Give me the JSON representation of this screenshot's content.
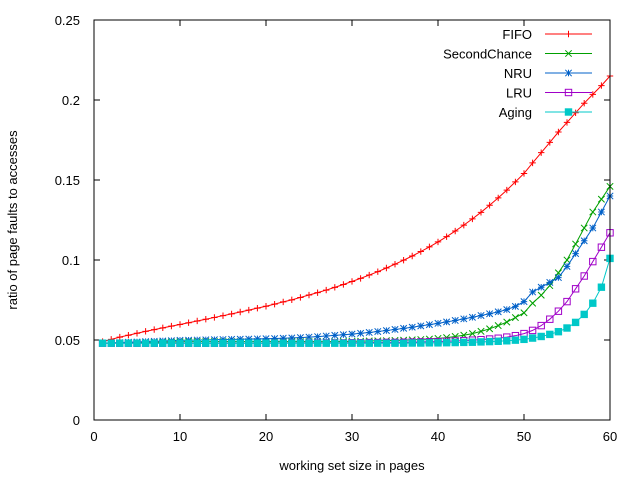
{
  "chart_data": {
    "type": "line",
    "title": "",
    "xlabel": "working set size in pages",
    "ylabel": "ratio of page faults to accesses",
    "xlim": [
      0,
      60
    ],
    "ylim": [
      0,
      0.25
    ],
    "x_ticks": [
      0,
      10,
      20,
      30,
      40,
      50,
      60
    ],
    "x_tick_labels": [
      "0",
      "10",
      "20",
      "30",
      "40",
      "50",
      "60"
    ],
    "y_ticks": [
      0,
      0.05,
      0.1,
      0.15,
      0.2,
      0.25
    ],
    "y_tick_labels": [
      "0",
      "0.05",
      "0.1",
      "0.15",
      "0.2",
      "0.25"
    ],
    "grid": false,
    "legend_position": "top-right",
    "x": [
      1,
      2,
      3,
      4,
      5,
      6,
      7,
      8,
      9,
      10,
      11,
      12,
      13,
      14,
      15,
      16,
      17,
      18,
      19,
      20,
      21,
      22,
      23,
      24,
      25,
      26,
      27,
      28,
      29,
      30,
      31,
      32,
      33,
      34,
      35,
      36,
      37,
      38,
      39,
      40,
      41,
      42,
      43,
      44,
      45,
      46,
      47,
      48,
      49,
      50,
      51,
      52,
      53,
      54,
      55,
      56,
      57,
      58,
      59,
      60
    ],
    "series": [
      {
        "name": "FIFO",
        "color": "#ff0000",
        "marker": "plus",
        "values": [
          0.049,
          0.0504,
          0.0518,
          0.053,
          0.0542,
          0.0554,
          0.0565,
          0.0576,
          0.0587,
          0.0597,
          0.0608,
          0.0619,
          0.063,
          0.0641,
          0.0652,
          0.0663,
          0.0675,
          0.0687,
          0.0699,
          0.0711,
          0.0724,
          0.0738,
          0.0751,
          0.0766,
          0.0781,
          0.0796,
          0.0812,
          0.0829,
          0.0847,
          0.0866,
          0.0885,
          0.0906,
          0.0927,
          0.095,
          0.0974,
          0.0999,
          0.1025,
          0.1053,
          0.1082,
          0.1113,
          0.1146,
          0.1181,
          0.1218,
          0.1257,
          0.1298,
          0.1342,
          0.1388,
          0.1437,
          0.1488,
          0.1541,
          0.1607,
          0.1671,
          0.1735,
          0.18,
          0.186,
          0.192,
          0.198,
          0.2035,
          0.209,
          0.215
        ]
      },
      {
        "name": "SecondChance",
        "color": "#00a000",
        "marker": "x",
        "values": [
          0.048,
          0.0481,
          0.0482,
          0.0483,
          0.0484,
          0.0485,
          0.0486,
          0.0487,
          0.0488,
          0.0489,
          0.049,
          0.049,
          0.049,
          0.049,
          0.049,
          0.049,
          0.049,
          0.049,
          0.049,
          0.049,
          0.049,
          0.049,
          0.049,
          0.049,
          0.049,
          0.049,
          0.049,
          0.049,
          0.0491,
          0.0492,
          0.0493,
          0.0494,
          0.0495,
          0.0496,
          0.0497,
          0.0499,
          0.0501,
          0.0503,
          0.0506,
          0.051,
          0.0515,
          0.0522,
          0.053,
          0.054,
          0.0554,
          0.057,
          0.059,
          0.0612,
          0.064,
          0.067,
          0.073,
          0.078,
          0.084,
          0.092,
          0.1,
          0.11,
          0.12,
          0.13,
          0.138,
          0.146
        ]
      },
      {
        "name": "NRU",
        "color": "#0060c8",
        "marker": "star",
        "values": [
          0.048,
          0.0482,
          0.0484,
          0.0486,
          0.0488,
          0.049,
          0.0492,
          0.0494,
          0.0496,
          0.0498,
          0.0499,
          0.05,
          0.0501,
          0.0502,
          0.0503,
          0.0504,
          0.0505,
          0.0506,
          0.0507,
          0.0508,
          0.0509,
          0.0511,
          0.0513,
          0.0515,
          0.0518,
          0.0521,
          0.0525,
          0.0529,
          0.0533,
          0.0537,
          0.0542,
          0.0547,
          0.0553,
          0.0559,
          0.0566,
          0.0573,
          0.058,
          0.0588,
          0.0596,
          0.0604,
          0.0613,
          0.0622,
          0.0632,
          0.0642,
          0.0653,
          0.0664,
          0.0676,
          0.069,
          0.071,
          0.074,
          0.08,
          0.083,
          0.086,
          0.089,
          0.096,
          0.104,
          0.112,
          0.12,
          0.13,
          0.14
        ]
      },
      {
        "name": "LRU",
        "color": "#a000c8",
        "marker": "square-open",
        "values": [
          0.048,
          0.048,
          0.048,
          0.048,
          0.048,
          0.048,
          0.048,
          0.048,
          0.048,
          0.048,
          0.048,
          0.048,
          0.048,
          0.048,
          0.048,
          0.048,
          0.048,
          0.048,
          0.048,
          0.048,
          0.0481,
          0.0481,
          0.0481,
          0.0481,
          0.0481,
          0.0482,
          0.0482,
          0.0482,
          0.0482,
          0.0483,
          0.0483,
          0.0484,
          0.0484,
          0.0485,
          0.0485,
          0.0486,
          0.0487,
          0.0488,
          0.0489,
          0.049,
          0.0492,
          0.0494,
          0.0496,
          0.0499,
          0.0502,
          0.0506,
          0.0511,
          0.0518,
          0.0527,
          0.054,
          0.056,
          0.059,
          0.063,
          0.068,
          0.074,
          0.082,
          0.09,
          0.099,
          0.108,
          0.117
        ]
      },
      {
        "name": "Aging",
        "color": "#00c8c8",
        "marker": "square-filled",
        "values": [
          0.048,
          0.048,
          0.048,
          0.048,
          0.048,
          0.048,
          0.048,
          0.048,
          0.048,
          0.048,
          0.048,
          0.048,
          0.048,
          0.048,
          0.048,
          0.048,
          0.048,
          0.048,
          0.048,
          0.048,
          0.048,
          0.048,
          0.048,
          0.048,
          0.048,
          0.048,
          0.048,
          0.048,
          0.048,
          0.048,
          0.048,
          0.048,
          0.048,
          0.048,
          0.048,
          0.048,
          0.0481,
          0.0481,
          0.0482,
          0.0482,
          0.0483,
          0.0484,
          0.0485,
          0.0486,
          0.0488,
          0.049,
          0.0492,
          0.0495,
          0.0499,
          0.0504,
          0.0512,
          0.0522,
          0.0535,
          0.0552,
          0.0575,
          0.061,
          0.066,
          0.073,
          0.083,
          0.101
        ]
      }
    ]
  }
}
